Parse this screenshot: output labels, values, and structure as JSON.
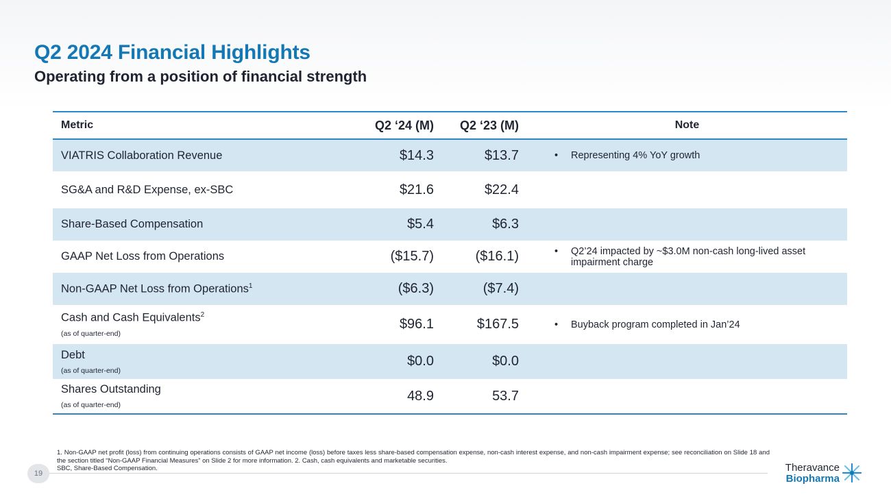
{
  "header": {
    "title": "Q2 2024 Financial Highlights",
    "subtitle": "Operating from a position of financial strength"
  },
  "table": {
    "columns": [
      "Metric",
      "Q2 ‘24 (M)",
      "Q2 ‘23 (M)",
      "Note"
    ],
    "rows": [
      {
        "metric": "VIATRIS Collaboration Revenue",
        "sup": "",
        "sub": "",
        "q224": "$14.3",
        "q223": "$13.7",
        "note": "Representing 4% YoY growth"
      },
      {
        "metric": "SG&A and R&D Expense, ex-SBC",
        "sup": "",
        "sub": "",
        "q224": "$21.6",
        "q223": "$22.4",
        "note": ""
      },
      {
        "metric": "Share-Based Compensation",
        "sup": "",
        "sub": "",
        "q224": "$5.4",
        "q223": "$6.3",
        "note": ""
      },
      {
        "metric": "GAAP Net Loss from Operations",
        "sup": "",
        "sub": "",
        "q224": "($15.7)",
        "q223": "($16.1)",
        "note": "Q2’24 impacted by ~$3.0M non-cash long-lived asset impairment charge"
      },
      {
        "metric": "Non-GAAP Net Loss from Operations",
        "sup": "1",
        "sub": "",
        "q224": "($6.3)",
        "q223": "($7.4)",
        "note": ""
      },
      {
        "metric": "Cash and Cash Equivalents",
        "sup": "2",
        "sub": "(as of quarter-end)",
        "q224": "$96.1",
        "q223": "$167.5",
        "note": "Buyback program completed in Jan’24"
      },
      {
        "metric": "Debt",
        "sup": "",
        "sub": "(as of quarter-end)",
        "q224": "$0.0",
        "q223": "$0.0",
        "note": ""
      },
      {
        "metric": "Shares Outstanding",
        "sup": "",
        "sub": "(as of quarter-end)",
        "q224": "48.9",
        "q223": "53.7",
        "note": ""
      }
    ]
  },
  "footnote": {
    "line1": "1. Non-GAAP net profit (loss) from continuing operations consists of GAAP net income (loss) before taxes less share-based compensation expense, non-cash interest expense, and non-cash impairment expense; see reconciliation on Slide 18 and the section titled “Non-GAAP Financial Measures” on Slide 2 for more information. 2. Cash, cash equivalents and marketable securities.",
    "line2": "SBC, Share-Based Compensation."
  },
  "page_number": "19",
  "logo": {
    "line1": "Theravance",
    "line2": "Biopharma",
    "icon": "star-burst-icon"
  },
  "colors": {
    "accent": "#1478b4",
    "row_shade": "#d3e6f2",
    "rule": "#2b88c8"
  }
}
